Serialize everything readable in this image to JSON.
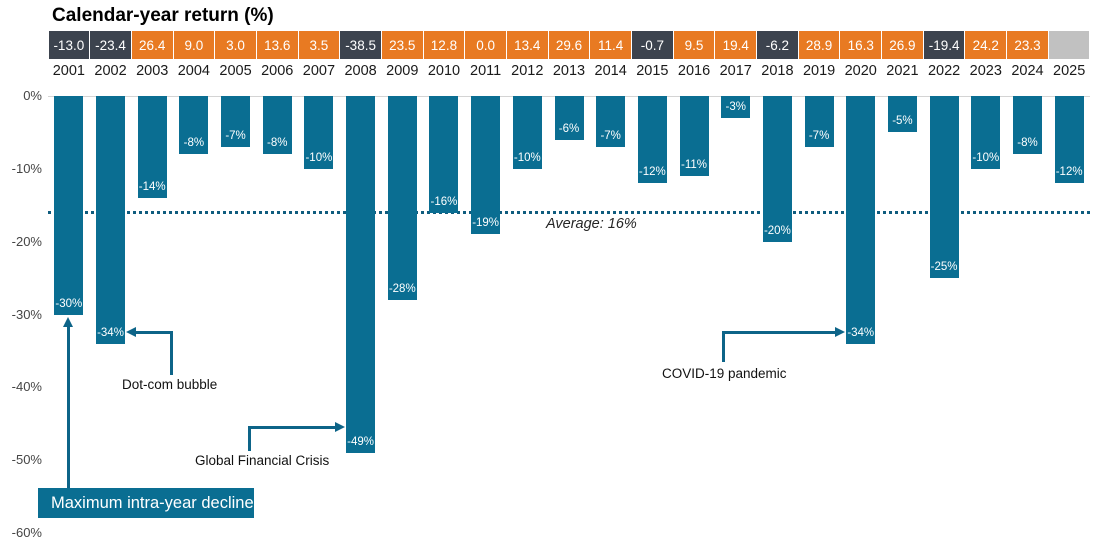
{
  "chart_data": {
    "type": "bar",
    "title": "Calendar-year return (%)",
    "categories": [
      "2001",
      "2002",
      "2003",
      "2004",
      "2005",
      "2006",
      "2007",
      "2008",
      "2009",
      "2010",
      "2011",
      "2012",
      "2013",
      "2014",
      "2015",
      "2016",
      "2017",
      "2018",
      "2019",
      "2020",
      "2021",
      "2022",
      "2023",
      "2024",
      "2025"
    ],
    "series": [
      {
        "name": "Calendar-year return",
        "values": [
          -13.0,
          -23.4,
          26.4,
          9.0,
          3.0,
          13.6,
          3.5,
          -38.5,
          23.5,
          12.8,
          0.0,
          13.4,
          29.6,
          11.4,
          -0.7,
          9.5,
          19.4,
          -6.2,
          28.9,
          16.3,
          26.9,
          -19.4,
          24.2,
          23.3,
          null
        ],
        "labels": [
          "-13.0",
          "-23.4",
          "26.4",
          "9.0",
          "3.0",
          "13.6",
          "3.5",
          "-38.5",
          "23.5",
          "12.8",
          "0.0",
          "13.4",
          "29.6",
          "11.4",
          "-0.7",
          "9.5",
          "19.4",
          "-6.2",
          "28.9",
          "16.3",
          "26.9",
          "-19.4",
          "24.2",
          "23.3",
          ""
        ]
      },
      {
        "name": "Maximum intra-year decline",
        "values": [
          -30,
          -34,
          -14,
          -8,
          -7,
          -8,
          -10,
          -49,
          -28,
          -16,
          -19,
          -10,
          -6,
          -7,
          -12,
          -11,
          -3,
          -20,
          -7,
          -34,
          -5,
          -25,
          -10,
          -8,
          -12
        ],
        "labels": [
          "-30%",
          "-34%",
          "-14%",
          "-8%",
          "-7%",
          "-8%",
          "-10%",
          "-49%",
          "-28%",
          "-16%",
          "-19%",
          "-10%",
          "-6%",
          "-7%",
          "-12%",
          "-11%",
          "-3%",
          "-20%",
          "-7%",
          "-34%",
          "-5%",
          "-25%",
          "-10%",
          "-8%",
          "-12%"
        ]
      }
    ],
    "average_line": {
      "value": -16,
      "label": "Average: 16%"
    },
    "y_axis": {
      "ticks": [
        "0%",
        "-10%",
        "-20%",
        "-30%",
        "-40%",
        "-50%",
        "-60%"
      ],
      "range": [
        0,
        -60
      ],
      "grid": "zero-line-only"
    },
    "legend_position": "bottom-left",
    "annotations": [
      {
        "id": "max-decline",
        "label": "Maximum intra-year decline",
        "target_year": "2001"
      },
      {
        "id": "dotcom",
        "label": "Dot-com bubble",
        "target_year": "2002"
      },
      {
        "id": "gfc",
        "label": "Global Financial Crisis",
        "target_year": "2008"
      },
      {
        "id": "covid",
        "label": "COVID-19 pandemic",
        "target_year": "2020"
      }
    ],
    "colors": {
      "bar": "#0a6e92",
      "positive_return_box": "#e87a22",
      "negative_return_box": "#3c434e",
      "empty_return_box": "#c1c1c1",
      "return_box_text": "#ffffff",
      "arrow": "#0d6488",
      "average_dotted_line": "#0f5c7e",
      "zero_gridline": "#d4d4d4"
    }
  }
}
